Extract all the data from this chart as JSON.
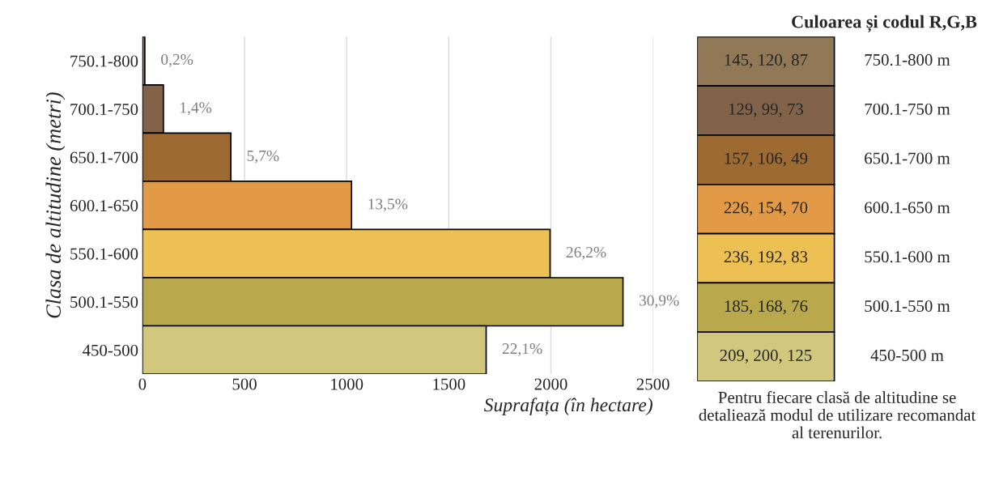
{
  "chart_data": [
    {
      "type": "bar",
      "orientation": "horizontal",
      "categories": [
        "750.1-800",
        "700.1-750",
        "650.1-700",
        "600.1-650",
        "550.1-600",
        "500.1-550",
        "450-500"
      ],
      "values": [
        12,
        103,
        433,
        1024,
        1996,
        2353,
        1683
      ],
      "colors": [
        "#917857",
        "#816349",
        "#9d6a31",
        "#e29a46",
        "#ecc053",
        "#b9a84c",
        "#d1c87d"
      ],
      "annotations": [
        {
          "text": "0,2%",
          "x": 12,
          "y": "750.1-800"
        },
        {
          "text": "1,4%",
          "x": 103,
          "y": "700.1-750"
        },
        {
          "text": "5,7%",
          "x": 433,
          "y": "650.1-700"
        },
        {
          "text": "13,5%",
          "x": 1024,
          "y": "600.1-650"
        },
        {
          "text": "26,2%",
          "x": 1996,
          "y": "550.1-600"
        },
        {
          "text": "30,9%",
          "x": 2353,
          "y": "500.1-550"
        },
        {
          "text": "22,1%",
          "x": 1683,
          "y": "450-500"
        }
      ],
      "xlim": [
        0,
        2500
      ],
      "xticks": [
        0,
        500,
        1000,
        1500,
        2000,
        2500
      ],
      "xlabel": "Suprafața (în hectare)",
      "ylabel": "Clasa de altitudine (metri)",
      "grid": "x"
    },
    {
      "type": "other",
      "title": "Culoarea și codul R,G,B",
      "categories": [
        "750.1-800 m",
        "700.1-750 m",
        "650.1-700 m",
        "600.1-650 m",
        "550.1-600 m",
        "500.1-550 m",
        "450-500 m"
      ],
      "colors": [
        "#917857",
        "#816349",
        "#9d6a31",
        "#e29a46",
        "#ecc053",
        "#b9a84c",
        "#d1c87d"
      ],
      "value_labels": [
        "145, 120, 87",
        "129, 99, 73",
        "157, 106, 49",
        "226, 154, 70",
        "236, 192, 83",
        "185, 168, 76",
        "209, 200, 125"
      ],
      "annotations": [
        "Pentru fiecare clasă de altitudine se detaliează modul de utilizare recomandat al terenurilor."
      ]
    }
  ]
}
